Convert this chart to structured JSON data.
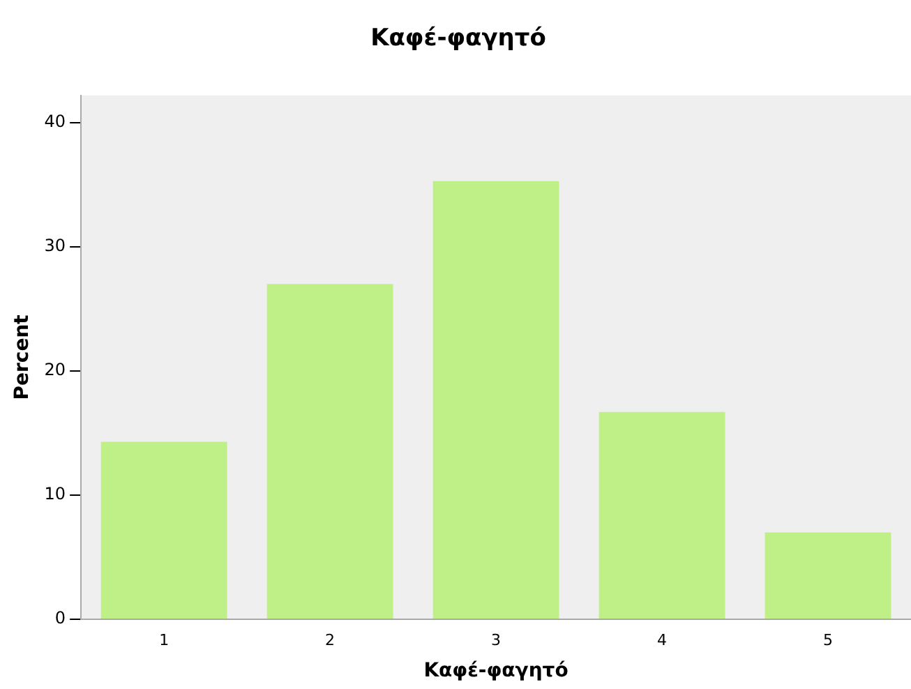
{
  "chart_data": {
    "type": "bar",
    "title": "Καφέ-φαγητό",
    "xlabel": "Καφέ-φαγητό",
    "ylabel": "Percent",
    "categories": [
      "1",
      "2",
      "3",
      "4",
      "5"
    ],
    "values": [
      14.3,
      27.0,
      35.3,
      16.7,
      7.0
    ],
    "color": "#bfef87",
    "ylim": [
      0,
      42.2
    ],
    "yticks": [
      0,
      10,
      20,
      30,
      40
    ],
    "grid": false,
    "legend": false
  }
}
